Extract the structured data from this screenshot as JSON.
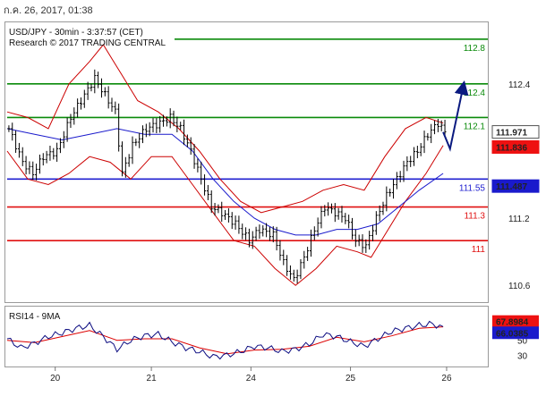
{
  "header": {
    "timestamp": "ก.ค. 26, 2017, 01:38",
    "instrument": "USD/JPY - 30min - 3:37:57 (CET)",
    "copyright": "Research © 2017 TRADING CENTRAL"
  },
  "colors": {
    "resistance": "#0a8a0a",
    "pivot": "#1f1fd0",
    "support": "#e01010",
    "candle": "#000000",
    "bollinger": "#cc0000",
    "ma": "#1a1acc",
    "arrow": "#0a1a80",
    "rsi": "#0b0b80",
    "rsi_signal": "#dd0000"
  },
  "chart_data": [
    {
      "type": "line",
      "title": "USD/JPY - 30min",
      "ylim": [
        110.45,
        112.95
      ],
      "xlabels": [
        "20",
        "21",
        "24",
        "25",
        "26"
      ],
      "yticks": [
        {
          "value": 112.4,
          "label": "112.4"
        },
        {
          "value": 111.2,
          "label": "111.2"
        },
        {
          "value": 110.6,
          "label": "110.6"
        }
      ],
      "levels": [
        {
          "name": "resistance",
          "value": 112.8,
          "label": "112.8",
          "color": "#0a8a0a"
        },
        {
          "name": "resistance",
          "value": 112.4,
          "label": "112.4",
          "color": "#0a8a0a"
        },
        {
          "name": "resistance",
          "value": 112.1,
          "label": "112.1",
          "color": "#0a8a0a"
        },
        {
          "name": "pivot",
          "value": 111.55,
          "label": "111.55",
          "color": "#1f1fd0"
        },
        {
          "name": "support",
          "value": 111.3,
          "label": "111.3",
          "color": "#e01010"
        },
        {
          "name": "support",
          "value": 111.0,
          "label": "111",
          "color": "#e01010"
        }
      ],
      "price_tags": [
        {
          "value": 111.971,
          "label": "111.971",
          "bg": "#ffffff",
          "fg": "#000000"
        },
        {
          "value": 111.836,
          "label": "111.836",
          "bg": "#ee1111",
          "fg": "#ffffff"
        },
        {
          "value": 111.487,
          "label": "111.487",
          "bg": "#1a1acc",
          "fg": "#ffffff"
        }
      ],
      "price_path": [
        [
          0,
          112.0
        ],
        [
          4,
          111.7
        ],
        [
          7,
          111.6
        ],
        [
          10,
          111.75
        ],
        [
          14,
          111.8
        ],
        [
          18,
          112.1
        ],
        [
          22,
          112.3
        ],
        [
          25,
          112.45
        ],
        [
          28,
          112.3
        ],
        [
          31,
          112.15
        ],
        [
          33,
          111.6
        ],
        [
          36,
          111.85
        ],
        [
          40,
          112.0
        ],
        [
          44,
          112.05
        ],
        [
          47,
          112.1
        ],
        [
          50,
          112.0
        ],
        [
          53,
          111.8
        ],
        [
          56,
          111.55
        ],
        [
          59,
          111.3
        ],
        [
          62,
          111.25
        ],
        [
          66,
          111.15
        ],
        [
          70,
          111.0
        ],
        [
          73,
          111.1
        ],
        [
          77,
          111.05
        ],
        [
          80,
          110.8
        ],
        [
          83,
          110.65
        ],
        [
          86,
          110.85
        ],
        [
          89,
          111.1
        ],
        [
          92,
          111.3
        ],
        [
          95,
          111.25
        ],
        [
          98,
          111.2
        ],
        [
          101,
          111.0
        ],
        [
          104,
          110.95
        ],
        [
          107,
          111.2
        ],
        [
          110,
          111.4
        ],
        [
          113,
          111.55
        ],
        [
          116,
          111.7
        ],
        [
          119,
          111.8
        ],
        [
          122,
          111.95
        ],
        [
          125,
          112.05
        ],
        [
          127,
          111.97
        ]
      ],
      "bands": {
        "upper": [
          [
            0,
            112.15
          ],
          [
            6,
            112.1
          ],
          [
            12,
            112.0
          ],
          [
            18,
            112.4
          ],
          [
            24,
            112.6
          ],
          [
            28,
            112.75
          ],
          [
            33,
            112.5
          ],
          [
            38,
            112.25
          ],
          [
            44,
            112.15
          ],
          [
            50,
            112.0
          ],
          [
            56,
            111.8
          ],
          [
            62,
            111.55
          ],
          [
            68,
            111.35
          ],
          [
            74,
            111.25
          ],
          [
            80,
            111.3
          ],
          [
            86,
            111.35
          ],
          [
            92,
            111.45
          ],
          [
            98,
            111.5
          ],
          [
            104,
            111.45
          ],
          [
            110,
            111.75
          ],
          [
            116,
            112.0
          ],
          [
            122,
            112.1
          ],
          [
            127,
            112.05
          ]
        ],
        "lower": [
          [
            0,
            111.8
          ],
          [
            6,
            111.55
          ],
          [
            12,
            111.5
          ],
          [
            18,
            111.6
          ],
          [
            24,
            111.75
          ],
          [
            30,
            111.7
          ],
          [
            36,
            111.55
          ],
          [
            42,
            111.75
          ],
          [
            48,
            111.75
          ],
          [
            54,
            111.5
          ],
          [
            60,
            111.25
          ],
          [
            66,
            111.0
          ],
          [
            72,
            110.95
          ],
          [
            78,
            110.75
          ],
          [
            84,
            110.6
          ],
          [
            90,
            110.75
          ],
          [
            96,
            110.95
          ],
          [
            102,
            110.9
          ],
          [
            106,
            110.85
          ],
          [
            110,
            111.05
          ],
          [
            116,
            111.35
          ],
          [
            122,
            111.6
          ],
          [
            127,
            111.85
          ]
        ]
      },
      "ma": [
        [
          0,
          112.0
        ],
        [
          8,
          111.95
        ],
        [
          16,
          111.9
        ],
        [
          24,
          111.95
        ],
        [
          32,
          112.0
        ],
        [
          40,
          111.95
        ],
        [
          48,
          111.95
        ],
        [
          54,
          111.8
        ],
        [
          60,
          111.55
        ],
        [
          66,
          111.35
        ],
        [
          72,
          111.2
        ],
        [
          78,
          111.1
        ],
        [
          84,
          111.05
        ],
        [
          90,
          111.05
        ],
        [
          96,
          111.1
        ],
        [
          102,
          111.1
        ],
        [
          108,
          111.15
        ],
        [
          114,
          111.3
        ],
        [
          120,
          111.45
        ],
        [
          127,
          111.6
        ]
      ],
      "forecast_path": [
        [
          127,
          111.97
        ],
        [
          129,
          111.82
        ],
        [
          133,
          112.4
        ]
      ]
    },
    {
      "type": "line",
      "title": "RSI14 - 9MA",
      "ylim": [
        15,
        95
      ],
      "yticks": [
        {
          "value": 50,
          "label": "50"
        },
        {
          "value": 30,
          "label": "30"
        }
      ],
      "price_tags": [
        {
          "value": 67.8984,
          "label": "67.8984",
          "bg": "#ee1111",
          "fg": "#ffffff"
        },
        {
          "value": 66.0385,
          "label": "66.0385",
          "bg": "#1a1acc",
          "fg": "#ffffff"
        }
      ],
      "rsi": [
        [
          0,
          52
        ],
        [
          4,
          40
        ],
        [
          8,
          46
        ],
        [
          12,
          55
        ],
        [
          16,
          60
        ],
        [
          20,
          66
        ],
        [
          24,
          70
        ],
        [
          28,
          55
        ],
        [
          32,
          38
        ],
        [
          36,
          50
        ],
        [
          40,
          56
        ],
        [
          44,
          58
        ],
        [
          48,
          48
        ],
        [
          52,
          40
        ],
        [
          56,
          35
        ],
        [
          60,
          28
        ],
        [
          64,
          30
        ],
        [
          68,
          35
        ],
        [
          72,
          42
        ],
        [
          76,
          40
        ],
        [
          80,
          35
        ],
        [
          84,
          38
        ],
        [
          88,
          45
        ],
        [
          92,
          58
        ],
        [
          96,
          55
        ],
        [
          100,
          48
        ],
        [
          104,
          42
        ],
        [
          108,
          52
        ],
        [
          112,
          62
        ],
        [
          116,
          66
        ],
        [
          120,
          70
        ],
        [
          124,
          72
        ],
        [
          127,
          66
        ]
      ],
      "signal": [
        [
          0,
          50
        ],
        [
          8,
          47
        ],
        [
          16,
          55
        ],
        [
          24,
          63
        ],
        [
          32,
          50
        ],
        [
          40,
          52
        ],
        [
          48,
          52
        ],
        [
          56,
          40
        ],
        [
          64,
          32
        ],
        [
          72,
          37
        ],
        [
          80,
          38
        ],
        [
          88,
          42
        ],
        [
          96,
          54
        ],
        [
          104,
          48
        ],
        [
          112,
          56
        ],
        [
          120,
          66
        ],
        [
          127,
          68
        ]
      ]
    }
  ]
}
